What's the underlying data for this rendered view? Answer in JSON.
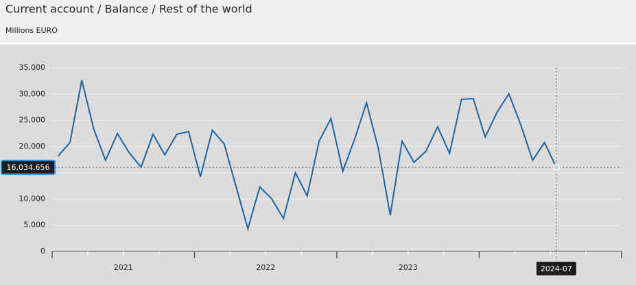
{
  "chart_data": {
    "type": "line",
    "title": "Current account / Balance / Rest of the world",
    "subtitle": "Millions EURO",
    "x": [
      "2021-01",
      "2021-02",
      "2021-03",
      "2021-04",
      "2021-05",
      "2021-06",
      "2021-07",
      "2021-08",
      "2021-09",
      "2021-10",
      "2021-11",
      "2021-12",
      "2022-01",
      "2022-02",
      "2022-03",
      "2022-04",
      "2022-05",
      "2022-06",
      "2022-07",
      "2022-08",
      "2022-09",
      "2022-10",
      "2022-11",
      "2022-12",
      "2023-01",
      "2023-02",
      "2023-03",
      "2023-04",
      "2023-05",
      "2023-06",
      "2023-07",
      "2023-08",
      "2023-09",
      "2023-10",
      "2023-11",
      "2023-12",
      "2024-01",
      "2024-02",
      "2024-03",
      "2024-04",
      "2024-05",
      "2024-06",
      "2024-07"
    ],
    "series": [
      {
        "color": "#1b64a0",
        "values": [
          18150,
          20760,
          32650,
          23380,
          17370,
          22460,
          18800,
          16060,
          22330,
          18410,
          22330,
          22850,
          14230,
          23120,
          20500,
          12400,
          4310,
          12280,
          10060,
          6270,
          15020,
          10580,
          21030,
          25340,
          15280,
          21420,
          28340,
          19590,
          6920,
          21030,
          16980,
          19070,
          23770,
          18680,
          28990,
          29120,
          21810,
          26510,
          30040,
          24160,
          17370,
          20760,
          16034.656
        ]
      }
    ],
    "year_labels": [
      "2021",
      "2022",
      "2023"
    ],
    "ylim": [
      0,
      35000
    ],
    "yticks": [
      0,
      {
        "value": 5000,
        "label": "5,000"
      },
      {
        "value": 10000,
        "label": "10,000"
      },
      {
        "value": 15000,
        "label": "15,000"
      },
      {
        "value": 20000,
        "label": "20,000"
      },
      {
        "value": 25000,
        "label": "25,000"
      },
      {
        "value": 30000,
        "label": "30,000"
      },
      {
        "value": 35000,
        "label": "35,000"
      }
    ],
    "grid": true,
    "crosshair": {
      "index": 42,
      "label": "16,034.656"
    }
  }
}
